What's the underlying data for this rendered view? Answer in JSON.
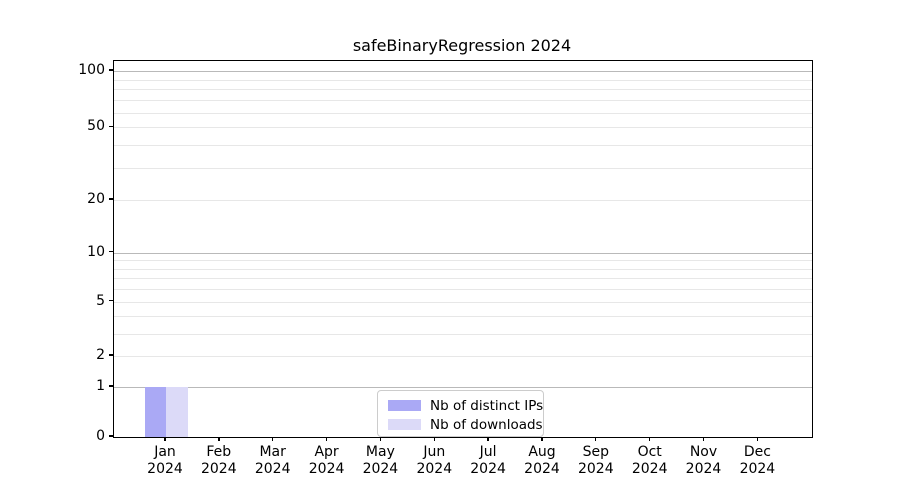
{
  "chart_data": {
    "type": "bar",
    "title": "safeBinaryRegression 2024",
    "categories": [
      {
        "month": "Jan",
        "year": "2024"
      },
      {
        "month": "Feb",
        "year": "2024"
      },
      {
        "month": "Mar",
        "year": "2024"
      },
      {
        "month": "Apr",
        "year": "2024"
      },
      {
        "month": "May",
        "year": "2024"
      },
      {
        "month": "Jun",
        "year": "2024"
      },
      {
        "month": "Jul",
        "year": "2024"
      },
      {
        "month": "Aug",
        "year": "2024"
      },
      {
        "month": "Sep",
        "year": "2024"
      },
      {
        "month": "Oct",
        "year": "2024"
      },
      {
        "month": "Nov",
        "year": "2024"
      },
      {
        "month": "Dec",
        "year": "2024"
      }
    ],
    "series": [
      {
        "name": "Nb of distinct IPs",
        "color": "#aaa9f5",
        "values": [
          1,
          0,
          0,
          0,
          0,
          0,
          0,
          0,
          0,
          0,
          0,
          0
        ]
      },
      {
        "name": "Nb of downloads",
        "color": "#dcdaf8",
        "values": [
          1,
          0,
          0,
          0,
          0,
          0,
          0,
          0,
          0,
          0,
          0,
          0
        ]
      }
    ],
    "y_axis": {
      "scale": "log-like",
      "ticks": [
        0,
        1,
        2,
        5,
        10,
        20,
        50,
        100
      ],
      "minor_gridlines": [
        3,
        4,
        6,
        7,
        8,
        9,
        30,
        40,
        60,
        70,
        80,
        90
      ],
      "range_top": 113
    },
    "xlabel": "",
    "ylabel": "",
    "grid": true,
    "legend": {
      "position": "lower center"
    },
    "colors": {
      "major_grid": "#b9b9b9",
      "minor_grid": "#e7e7e7",
      "spine": "#000000",
      "background": "#ffffff"
    }
  }
}
